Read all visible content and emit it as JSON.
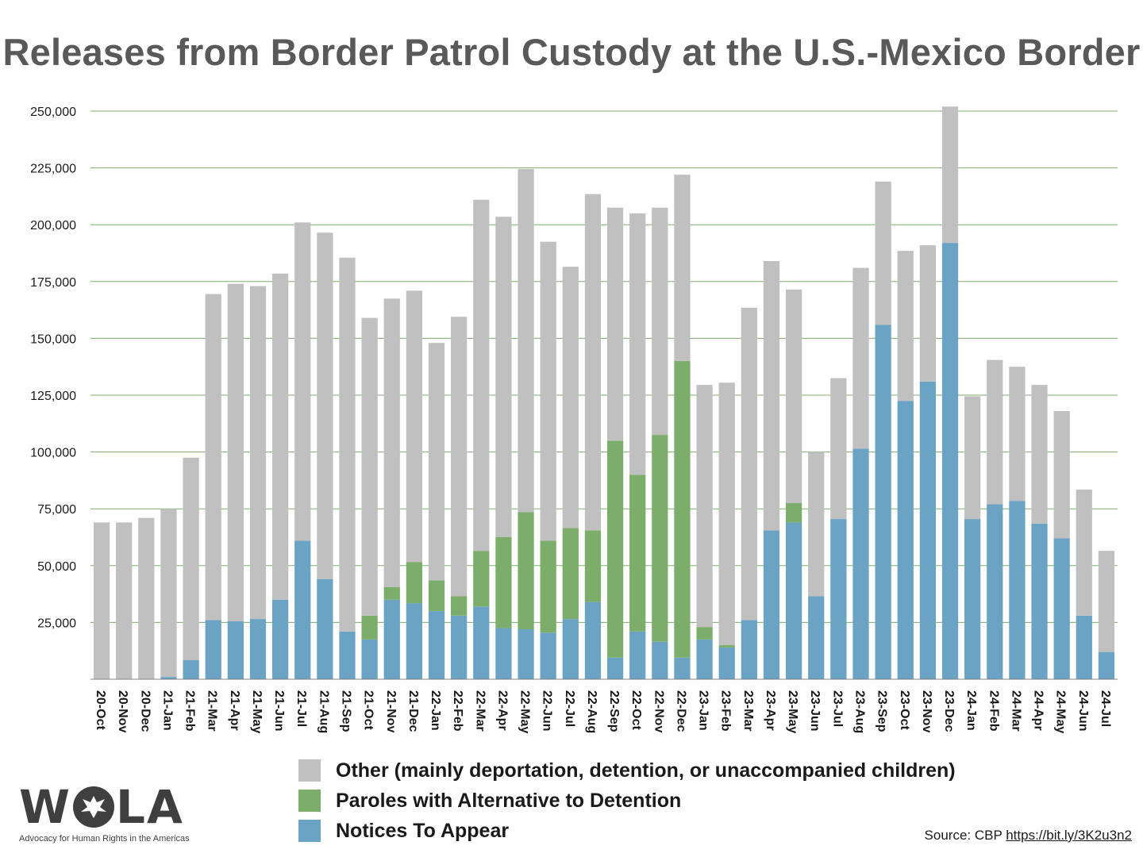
{
  "chart_data": {
    "type": "bar",
    "stacked": true,
    "title": "Releases from Border Patrol Custody at the U.S.-Mexico Border",
    "categories": [
      "20-Oct",
      "20-Nov",
      "20-Dec",
      "21-Jan",
      "21-Feb",
      "21-Mar",
      "21-Apr",
      "21-May",
      "21-Jun",
      "21-Jul",
      "21-Aug",
      "21-Sep",
      "21-Oct",
      "21-Nov",
      "21-Dec",
      "22-Jan",
      "22-Feb",
      "22-Mar",
      "22-Apr",
      "22-May",
      "22-Jun",
      "22-Jul",
      "22-Aug",
      "22-Sep",
      "22-Oct",
      "22-Nov",
      "22-Dec",
      "23-Jan",
      "23-Feb",
      "23-Mar",
      "23-Apr",
      "23-May",
      "23-Jun",
      "23-Jul",
      "23-Aug",
      "23-Sep",
      "23-Oct",
      "23-Nov",
      "23-Dec",
      "24-Jan",
      "24-Feb",
      "24-Mar",
      "24-Apr",
      "24-May",
      "24-Jun",
      "24-Jul"
    ],
    "series": [
      {
        "name": "Notices To Appear",
        "color": "#6aa3c3",
        "values": [
          0,
          0,
          0,
          1000,
          8500,
          26000,
          25500,
          26500,
          35000,
          61000,
          44000,
          21000,
          17500,
          35000,
          33500,
          30000,
          28000,
          32000,
          22500,
          22000,
          20500,
          26500,
          34000,
          9500,
          21000,
          16500,
          9500,
          17500,
          14000,
          26000,
          65500,
          69000,
          36500,
          70500,
          101500,
          156000,
          122500,
          131000,
          192000,
          70500,
          77000,
          78500,
          68500,
          62000,
          28000,
          12000
        ]
      },
      {
        "name": "Paroles with Alternative to Detention",
        "color": "#7cad6a",
        "values": [
          0,
          0,
          0,
          0,
          0,
          0,
          0,
          0,
          0,
          0,
          0,
          0,
          10500,
          5500,
          18000,
          13500,
          8500,
          24500,
          40000,
          51500,
          40500,
          40000,
          31500,
          95500,
          69000,
          91000,
          130500,
          5500,
          1000,
          0,
          0,
          8500,
          0,
          0,
          0,
          0,
          0,
          0,
          0,
          0,
          0,
          0,
          0,
          0,
          0,
          0
        ]
      },
      {
        "name": "Other (mainly deportation, detention, or unaccompanied children)",
        "color": "#c0c0c0",
        "values": [
          69000,
          69000,
          71000,
          74000,
          89000,
          143500,
          148500,
          146500,
          143500,
          140000,
          152500,
          164500,
          131000,
          127000,
          119500,
          104500,
          123000,
          154500,
          141000,
          151000,
          131500,
          115000,
          148000,
          102500,
          115000,
          100000,
          82000,
          106500,
          115500,
          137500,
          118500,
          94000,
          63500,
          62000,
          79500,
          63000,
          66000,
          60000,
          60000,
          54000,
          63500,
          59000,
          61000,
          56000,
          55500,
          44500
        ]
      }
    ],
    "yticks": [
      "25,000",
      "50,000",
      "75,000",
      "100,000",
      "125,000",
      "150,000",
      "175,000",
      "200,000",
      "225,000",
      "250,000"
    ],
    "ylim": [
      0,
      250000
    ],
    "grid": true,
    "legend_position": "bottom"
  },
  "legend": {
    "items": [
      {
        "label": "Other (mainly deportation, detention, or unaccompanied children)",
        "color": "#c0c0c0"
      },
      {
        "label": "Paroles with Alternative to Detention",
        "color": "#7cad6a"
      },
      {
        "label": "Notices To Appear",
        "color": "#6aa3c3"
      }
    ]
  },
  "logo": {
    "letters_left": "W",
    "letters_right": "LA",
    "tagline": "Advocacy for Human Rights in the Americas"
  },
  "source": {
    "prefix": "Source: CBP ",
    "link": "https://bit.ly/3K2u3n2"
  }
}
